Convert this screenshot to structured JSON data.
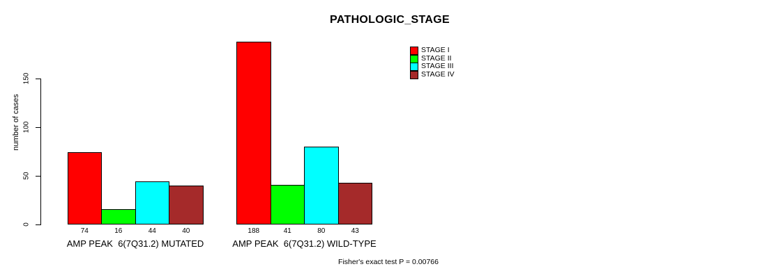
{
  "title": "PATHOLOGIC_STAGE",
  "chart_data": {
    "type": "bar",
    "title": "PATHOLOGIC_STAGE",
    "ylabel": "number of cases",
    "xlabel": "",
    "ylim": [
      0,
      150
    ],
    "yticks": [
      0,
      50,
      100,
      150
    ],
    "grid": false,
    "legend_position": "top-right",
    "bar_border_color": "#000000",
    "background_color": "#FFFFFF",
    "text_color": "#000000",
    "categories": [
      "AMP PEAK  6(7Q31.2) MUTATED",
      "AMP PEAK  6(7Q31.2) WILD-TYPE"
    ],
    "groups": [
      {
        "label": "AMP PEAK  6(7Q31.2) MUTATED",
        "values": [
          74,
          16,
          44,
          40
        ]
      },
      {
        "label": "AMP PEAK  6(7Q31.2) WILD-TYPE",
        "values": [
          188,
          41,
          80,
          43
        ]
      }
    ],
    "series": [
      {
        "name": "STAGE I",
        "color": "#FF0000",
        "values": [
          74,
          188
        ]
      },
      {
        "name": "STAGE II",
        "color": "#00FF00",
        "values": [
          16,
          41
        ]
      },
      {
        "name": "STAGE III",
        "color": "#00FFFF",
        "values": [
          44,
          80
        ]
      },
      {
        "name": "STAGE IV",
        "color": "#A52A2A",
        "values": [
          40,
          43
        ]
      }
    ],
    "annotation": "Fisher's exact test P = 0.00766"
  }
}
